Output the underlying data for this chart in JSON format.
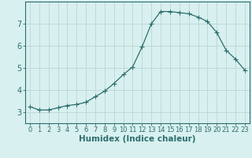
{
  "x": [
    0,
    1,
    2,
    3,
    4,
    5,
    6,
    7,
    8,
    9,
    10,
    11,
    12,
    13,
    14,
    15,
    16,
    17,
    18,
    19,
    20,
    21,
    22,
    23
  ],
  "y": [
    3.25,
    3.1,
    3.1,
    3.2,
    3.3,
    3.35,
    3.45,
    3.7,
    3.95,
    4.3,
    4.7,
    5.05,
    5.95,
    7.0,
    7.55,
    7.55,
    7.5,
    7.45,
    7.3,
    7.1,
    6.6,
    5.8,
    5.4,
    4.9
  ],
  "xlim": [
    -0.5,
    23.5
  ],
  "ylim": [
    2.5,
    8.0
  ],
  "yticks": [
    3,
    4,
    5,
    6,
    7
  ],
  "xtick_labels": [
    "0",
    "1",
    "2",
    "3",
    "4",
    "5",
    "6",
    "7",
    "8",
    "9",
    "10",
    "11",
    "12",
    "13",
    "14",
    "15",
    "16",
    "17",
    "18",
    "19",
    "20",
    "21",
    "22",
    "23"
  ],
  "xlabel": "Humidex (Indice chaleur)",
  "line_color": "#2d6e6e",
  "marker": "D",
  "marker_size": 2.0,
  "bg_color": "#d8f0ef",
  "grid_color": "#b8d8d4",
  "axis_color": "#2d6e6e",
  "xlabel_fontsize": 7.5,
  "tick_fontsize": 6.0,
  "ytick_fontsize": 7.0,
  "linewidth": 0.9
}
